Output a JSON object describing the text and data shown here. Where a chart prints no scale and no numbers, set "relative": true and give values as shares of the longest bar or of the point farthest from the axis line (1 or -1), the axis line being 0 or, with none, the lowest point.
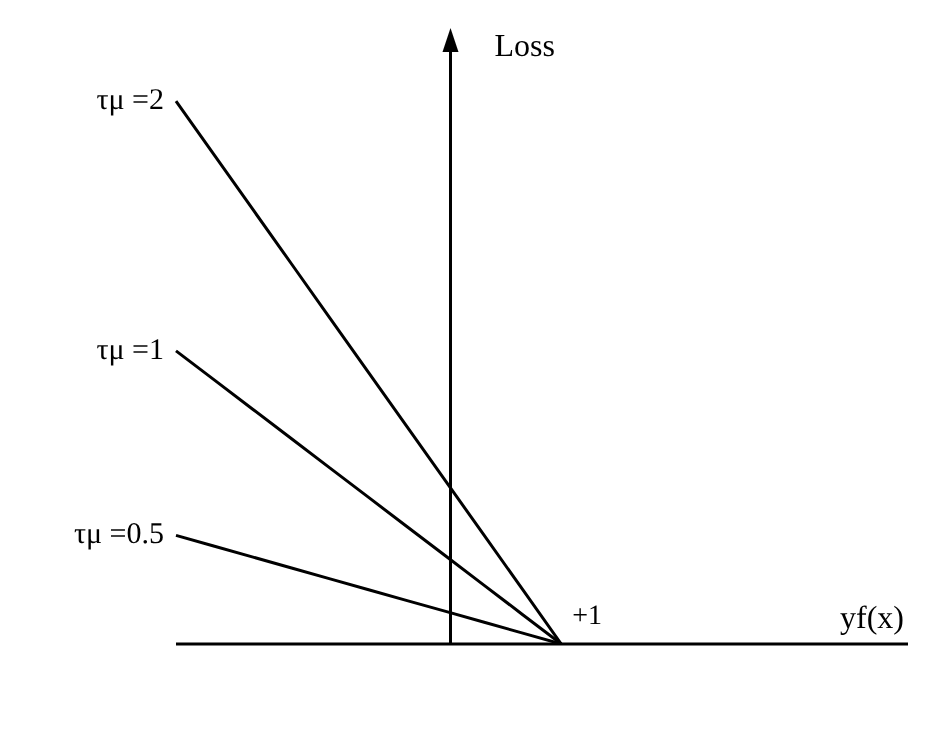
{
  "chart_data": {
    "type": "line",
    "relative": true,
    "xlabel": "yf(x)",
    "ylabel": "Loss",
    "marker": "none",
    "line_style": "solid",
    "grid": false,
    "legend": false,
    "annotations": [
      "+1"
    ],
    "categories": [
      null,
      null,
      null,
      null,
      null,
      null,
      null,
      null,
      null,
      null,
      null,
      null,
      null,
      null,
      null,
      null,
      null,
      null,
      null,
      null
    ],
    "series": [
      {
        "name": "τμ =2",
        "color": "#000000",
        "values": [
          1,
          0.9,
          0.8,
          0.7,
          0.6,
          0.5,
          0.4,
          0.3,
          0.2,
          0.1,
          0,
          null,
          null,
          null,
          null,
          null,
          null,
          null,
          null,
          null
        ]
      },
      {
        "name": "τμ =1",
        "color": "#000000",
        "values": [
          0.54,
          0.486,
          0.432,
          0.378,
          0.324,
          0.27,
          0.216,
          0.162,
          0.108,
          0.054,
          0,
          null,
          null,
          null,
          null,
          null,
          null,
          null,
          null,
          null
        ]
      },
      {
        "name": "τμ =0.5",
        "color": "#000000",
        "values": [
          0.2,
          0.18,
          0.16,
          0.14,
          0.12,
          0.1,
          0.08,
          0.06,
          0.04,
          0.02,
          0,
          null,
          null,
          null,
          null,
          null,
          null,
          null,
          null,
          null
        ]
      }
    ]
  }
}
